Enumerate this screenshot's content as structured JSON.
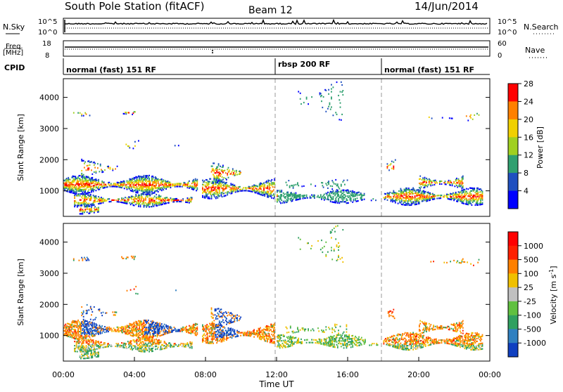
{
  "header": {
    "title": "South Pole Station (fitACF)",
    "beam": "Beam 12",
    "date": "14/Jun/2014"
  },
  "strip_panels": {
    "nsky": {
      "label": "N.Sky",
      "tick_top": "10^5",
      "tick_bottom": "10^0"
    },
    "nsearch": {
      "label": "N.Search",
      "tick_top": "10^5",
      "tick_bottom": "10^0"
    },
    "freq": {
      "label": "Freq.",
      "unit": "[MHz]",
      "tick_top": "18",
      "tick_bottom": "8"
    },
    "nave": {
      "label": "Nave",
      "tick_top": "60",
      "tick_bottom": "0"
    },
    "cpid": {
      "label": "CPID",
      "segments": [
        {
          "label": "normal (fast) 151 RF",
          "start_h": 0,
          "end_h": 12
        },
        {
          "label": "rbsp 200 RF",
          "start_h": 12,
          "end_h": 18
        },
        {
          "label": "normal (fast) 151 RF",
          "start_h": 18,
          "end_h": 24
        }
      ]
    }
  },
  "chart_data": [
    {
      "type": "heatmap",
      "quantity": "Power",
      "ylabel": "Slant Range [km]",
      "xlabel": "",
      "ylim": [
        180,
        4600
      ],
      "xlim_hours": [
        0,
        24
      ],
      "yticks": [
        "1000",
        "2000",
        "3000",
        "4000"
      ],
      "colorbar": {
        "label": "Power [dB]",
        "ticks": [
          "4",
          "8",
          "12",
          "16",
          "20",
          "24",
          "28"
        ],
        "colors": [
          "#0000ff",
          "#2050c0",
          "#30a070",
          "#a0d020",
          "#f0d000",
          "#ff8000",
          "#ff0000"
        ]
      },
      "vertical_markers_hours": [
        12,
        18
      ]
    },
    {
      "type": "heatmap",
      "quantity": "Velocity",
      "ylabel": "Slant Range [km]",
      "xlabel": "Time UT",
      "ylim": [
        180,
        4600
      ],
      "xlim_hours": [
        0,
        24
      ],
      "yticks": [
        "1000",
        "2000",
        "3000",
        "4000"
      ],
      "xticks": [
        "00:00",
        "04:00",
        "08:00",
        "12:00",
        "16:00",
        "20:00",
        "00:00"
      ],
      "colorbar": {
        "label": "Velocity [m s",
        "label_sup": "-1",
        "label_end": "]",
        "ticks": [
          "1000",
          "500",
          "100",
          "25",
          "-25",
          "-100",
          "-500",
          "-1000"
        ],
        "colors": [
          "#1040c0",
          "#3080c0",
          "#30a060",
          "#60c040",
          "#c0c0c0",
          "#f0c000",
          "#ff8000",
          "#ff2000",
          "#ff0000"
        ]
      },
      "vertical_markers_hours": [
        12,
        18
      ]
    }
  ]
}
